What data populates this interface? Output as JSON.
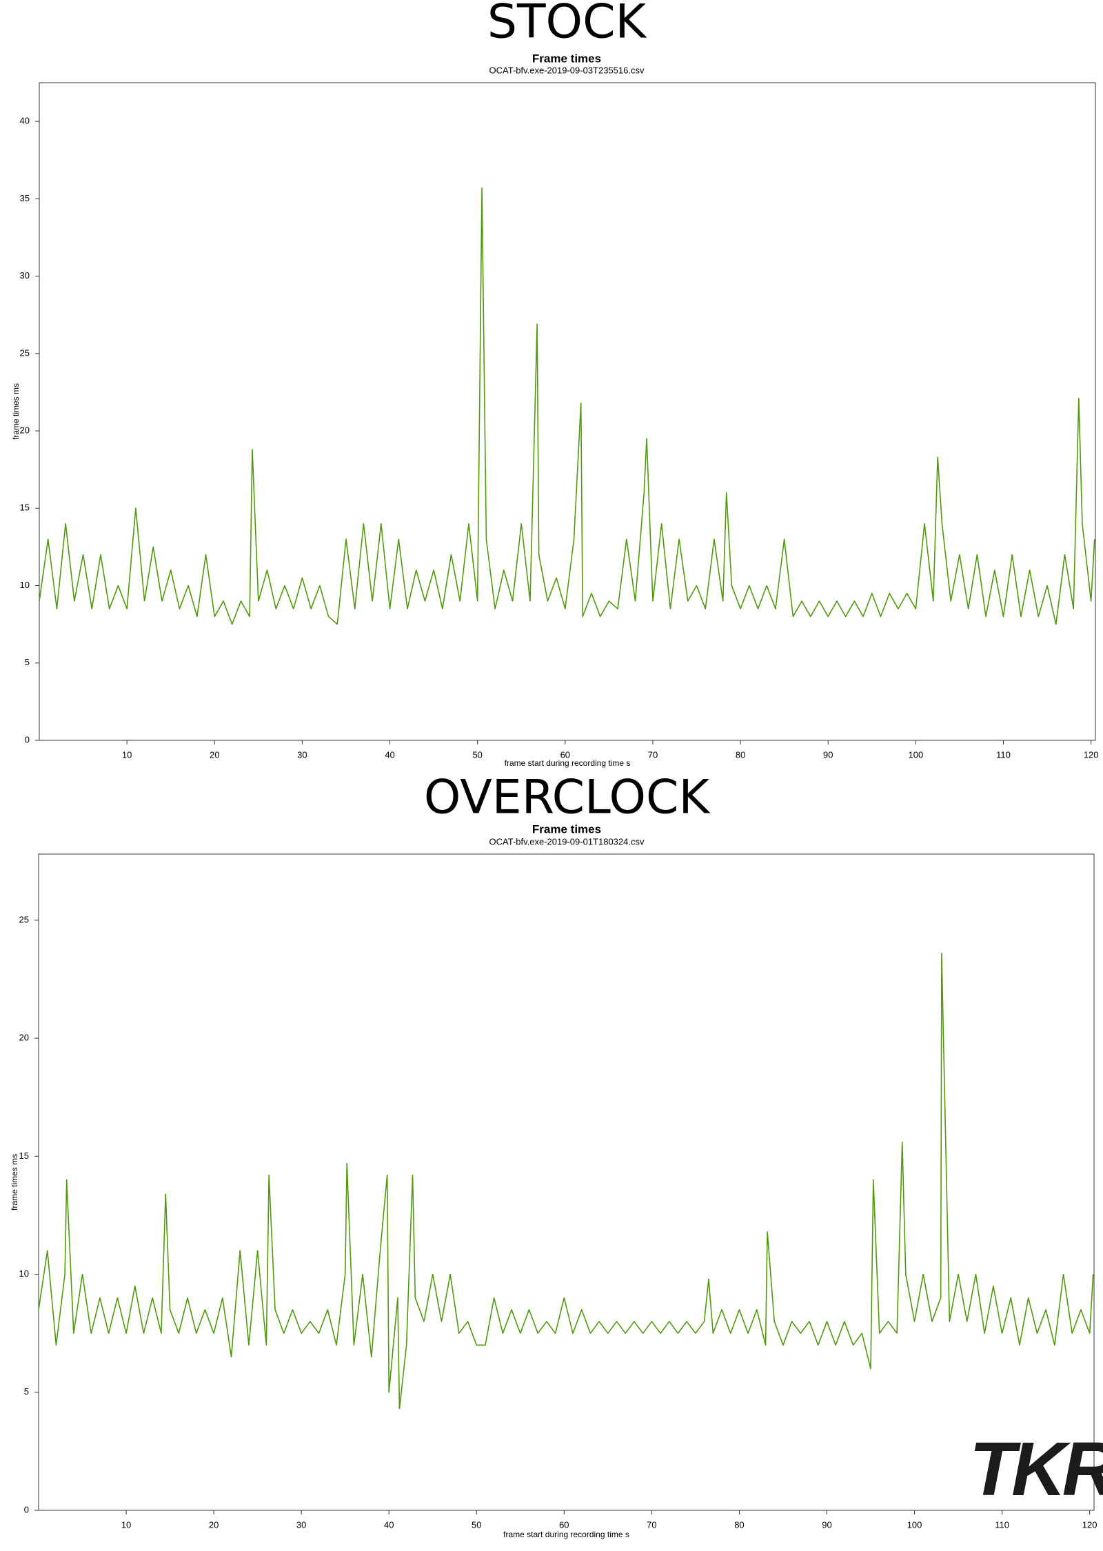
{
  "chart_data": [
    {
      "type": "line",
      "heading": "STOCK",
      "title": "Frame times",
      "subtitle": "OCAT-bfv.exe-2019-09-03T235516.csv",
      "x_label": "frame start during recording time s",
      "y_label": "frame times ms",
      "color": "#4f9a0a",
      "xlim": [
        0,
        120.5
      ],
      "ylim": [
        0,
        42.5
      ],
      "xticks": [
        10,
        20,
        30,
        40,
        50,
        60,
        70,
        80,
        90,
        100,
        110,
        120
      ],
      "yticks": [
        0,
        5,
        10,
        15,
        20,
        25,
        30,
        35,
        40
      ],
      "x": [
        0,
        1,
        2,
        3,
        4,
        5,
        6,
        7,
        8,
        9,
        10,
        11,
        12,
        13,
        14,
        15,
        16,
        17,
        18,
        19,
        20,
        21,
        22,
        23,
        24,
        24.3,
        25,
        26,
        27,
        28,
        29,
        30,
        31,
        32,
        33,
        34,
        35,
        36,
        37,
        38,
        39,
        40,
        41,
        42,
        43,
        44,
        45,
        46,
        47,
        48,
        49,
        50,
        50.5,
        51,
        52,
        53,
        54,
        55,
        56,
        56.8,
        57,
        58,
        59,
        60,
        61,
        61.8,
        62,
        63,
        64,
        65,
        66,
        67,
        68,
        69,
        69.3,
        70,
        71,
        72,
        73,
        74,
        75,
        76,
        77,
        78,
        78.4,
        79,
        80,
        81,
        82,
        83,
        84,
        85,
        86,
        87,
        88,
        89,
        90,
        91,
        92,
        93,
        94,
        95,
        96,
        97,
        98,
        99,
        100,
        101,
        102,
        102.5,
        103,
        104,
        105,
        106,
        107,
        108,
        109,
        110,
        111,
        112,
        113,
        114,
        115,
        116,
        117,
        118,
        118.6,
        119,
        120,
        120.4
      ],
      "values": [
        9,
        13,
        8.5,
        14,
        9,
        12,
        8.5,
        12,
        8.5,
        10,
        8.5,
        15,
        9,
        12.5,
        9,
        11,
        8.5,
        10,
        8,
        12,
        8,
        9,
        7.5,
        9,
        8,
        18.8,
        9,
        11,
        8.5,
        10,
        8.5,
        10.5,
        8.5,
        10,
        8,
        7.5,
        13,
        8.5,
        14,
        9,
        14,
        8.5,
        13,
        8.5,
        11,
        9,
        11,
        8.5,
        12,
        9,
        14,
        9,
        35.7,
        13,
        8.5,
        11,
        9,
        14,
        9,
        26.9,
        12,
        9,
        10.5,
        8.5,
        13,
        21.8,
        8,
        9.5,
        8,
        9,
        8.5,
        13,
        9,
        16,
        19.5,
        9,
        14,
        8.5,
        13,
        9,
        10,
        8.5,
        13,
        9,
        16,
        10,
        8.5,
        10,
        8.5,
        10,
        8.5,
        13,
        8,
        9,
        8,
        9,
        8,
        9,
        8,
        9,
        8,
        9.5,
        8,
        9.5,
        8.5,
        9.5,
        8.5,
        14,
        9,
        18.3,
        14,
        9,
        12,
        8.5,
        12,
        8,
        11,
        8,
        12,
        8,
        11,
        8,
        10,
        7.5,
        12,
        8.5,
        22.1,
        14,
        9,
        13
      ]
    },
    {
      "type": "line",
      "heading": "OVERCLOCK",
      "title": "Frame times",
      "subtitle": "OCAT-bfv.exe-2019-09-01T180324.csv",
      "x_label": "frame start during recording time s",
      "y_label": "frame times ms",
      "color": "#4f9a0a",
      "xlim": [
        0,
        120.5
      ],
      "ylim": [
        0,
        27.8
      ],
      "xticks": [
        10,
        20,
        30,
        40,
        50,
        60,
        70,
        80,
        90,
        100,
        110,
        120
      ],
      "yticks": [
        0,
        5,
        10,
        15,
        20,
        25
      ],
      "x": [
        0,
        1,
        2,
        3,
        3.2,
        4,
        5,
        6,
        7,
        8,
        9,
        10,
        11,
        12,
        13,
        14,
        14.5,
        15,
        16,
        17,
        18,
        19,
        20,
        21,
        22,
        23,
        24,
        25,
        26,
        26.3,
        27,
        28,
        29,
        30,
        31,
        32,
        33,
        34,
        35,
        35.2,
        36,
        37,
        38,
        39,
        39.8,
        40,
        41,
        41.2,
        42,
        42.7,
        43,
        44,
        45,
        46,
        47,
        48,
        49,
        50,
        51,
        52,
        53,
        54,
        55,
        56,
        57,
        58,
        59,
        60,
        61,
        62,
        63,
        64,
        65,
        66,
        67,
        68,
        69,
        70,
        71,
        72,
        73,
        74,
        75,
        76,
        76.5,
        77,
        78,
        79,
        80,
        81,
        82,
        83,
        83.2,
        84,
        85,
        86,
        87,
        88,
        89,
        90,
        91,
        92,
        93,
        94,
        95,
        95.3,
        96,
        97,
        98,
        98.6,
        99,
        100,
        101,
        102,
        103,
        103.1,
        104,
        105,
        106,
        107,
        108,
        109,
        110,
        111,
        112,
        113,
        114,
        115,
        116,
        117,
        118,
        119,
        120,
        120.4
      ],
      "values": [
        8.5,
        11,
        7,
        10,
        14,
        7.5,
        10,
        7.5,
        9,
        7.5,
        9,
        7.5,
        9.5,
        7.5,
        9,
        7.5,
        13.4,
        8.5,
        7.5,
        9,
        7.5,
        8.5,
        7.5,
        9,
        6.5,
        11,
        7,
        11,
        7,
        14.2,
        8.5,
        7.5,
        8.5,
        7.5,
        8,
        7.5,
        8.5,
        7,
        10,
        14.7,
        7,
        10,
        6.5,
        11,
        14.2,
        5,
        9,
        4.3,
        7,
        14.2,
        9,
        8,
        10,
        8,
        10,
        7.5,
        8,
        7,
        7,
        9,
        7.5,
        8.5,
        7.5,
        8.5,
        7.5,
        8,
        7.5,
        9,
        7.5,
        8.5,
        7.5,
        8,
        7.5,
        8,
        7.5,
        8,
        7.5,
        8,
        7.5,
        8,
        7.5,
        8,
        7.5,
        8,
        9.8,
        7.5,
        8.5,
        7.5,
        8.5,
        7.5,
        8.5,
        7,
        11.8,
        8,
        7,
        8,
        7.5,
        8,
        7,
        8,
        7,
        8,
        7,
        7.5,
        6,
        14,
        7.5,
        8,
        7.5,
        15.6,
        10,
        8,
        10,
        8,
        9,
        23.6,
        8,
        10,
        8,
        10,
        7.5,
        9.5,
        7.5,
        9,
        7,
        9,
        7.5,
        8.5,
        7,
        10,
        7.5,
        8.5,
        7.5,
        10
      ]
    }
  ],
  "logo": "TKR"
}
